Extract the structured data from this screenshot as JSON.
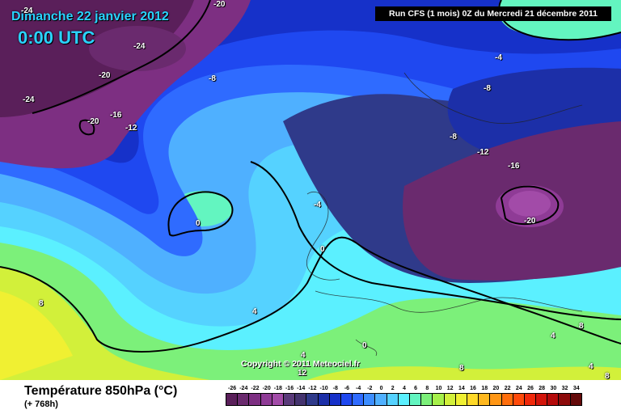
{
  "header": {
    "date": "Dimanche 22 janvier 2012",
    "time": "0:00 UTC",
    "run": "Run CFS (1 mois) 0Z du Mercredi 21 décembre 2011"
  },
  "copyright": "Copyright © 2011 Meteociel.fr",
  "legend": {
    "title": "Température 850hPa (°C)",
    "subtitle": "(+ 768h)",
    "scale": [
      {
        "value": "-26",
        "color": "#5a1f5a"
      },
      {
        "value": "-24",
        "color": "#6a2a6e"
      },
      {
        "value": "-22",
        "color": "#7d2f82"
      },
      {
        "value": "-20",
        "color": "#8f3b96"
      },
      {
        "value": "-18",
        "color": "#a24ba8"
      },
      {
        "value": "-16",
        "color": "#5a3a7a"
      },
      {
        "value": "-14",
        "color": "#44336e"
      },
      {
        "value": "-12",
        "color": "#2f3a8a"
      },
      {
        "value": "-10",
        "color": "#1c2fa8"
      },
      {
        "value": "-8",
        "color": "#1631c9"
      },
      {
        "value": "-6",
        "color": "#1f48f0"
      },
      {
        "value": "-4",
        "color": "#2f6bff"
      },
      {
        "value": "-2",
        "color": "#3c8dff"
      },
      {
        "value": "0",
        "color": "#4fb0ff"
      },
      {
        "value": "2",
        "color": "#55d2ff"
      },
      {
        "value": "4",
        "color": "#5bf0ff"
      },
      {
        "value": "6",
        "color": "#63f5c0"
      },
      {
        "value": "8",
        "color": "#7cf07a"
      },
      {
        "value": "10",
        "color": "#a6f04a"
      },
      {
        "value": "12",
        "color": "#d2f03a"
      },
      {
        "value": "14",
        "color": "#f0f032"
      },
      {
        "value": "16",
        "color": "#ffd928"
      },
      {
        "value": "18",
        "color": "#ffb81e"
      },
      {
        "value": "20",
        "color": "#ff9614"
      },
      {
        "value": "22",
        "color": "#ff6e0c"
      },
      {
        "value": "24",
        "color": "#ff4a0a"
      },
      {
        "value": "26",
        "color": "#f0280a"
      },
      {
        "value": "28",
        "color": "#d2140a"
      },
      {
        "value": "30",
        "color": "#b40a0a"
      },
      {
        "value": "32",
        "color": "#8c0a0a"
      },
      {
        "value": "34",
        "color": "#640a0a"
      }
    ]
  },
  "isotherms": [
    {
      "id": "iso-1",
      "text": "-24"
    },
    {
      "id": "iso-2",
      "text": "-24"
    },
    {
      "id": "iso-3",
      "text": "-20"
    },
    {
      "id": "iso-4",
      "text": "-24"
    },
    {
      "id": "iso-5",
      "text": "-16"
    },
    {
      "id": "iso-6",
      "text": "-20"
    },
    {
      "id": "iso-7",
      "text": "-12"
    },
    {
      "id": "iso-8",
      "text": "-8"
    },
    {
      "id": "iso-9",
      "text": "-4"
    },
    {
      "id": "iso-10",
      "text": "-8"
    },
    {
      "id": "iso-11",
      "text": "-8"
    },
    {
      "id": "iso-12",
      "text": "-12"
    },
    {
      "id": "iso-13",
      "text": "-16"
    },
    {
      "id": "iso-14",
      "text": "-20"
    },
    {
      "id": "iso-15",
      "text": "-4"
    },
    {
      "id": "iso-16",
      "text": "0"
    },
    {
      "id": "iso-17",
      "text": "0"
    },
    {
      "id": "iso-18",
      "text": "4"
    },
    {
      "id": "iso-19",
      "text": "8"
    },
    {
      "id": "iso-20",
      "text": "0"
    },
    {
      "id": "iso-21",
      "text": "4"
    },
    {
      "id": "iso-22",
      "text": "8"
    },
    {
      "id": "iso-23",
      "text": "8"
    },
    {
      "id": "iso-24",
      "text": "12"
    },
    {
      "id": "iso-25",
      "text": "4"
    },
    {
      "id": "iso-26",
      "text": "4"
    },
    {
      "id": "iso-27",
      "text": "8"
    },
    {
      "id": "iso-28",
      "text": "-20"
    }
  ]
}
